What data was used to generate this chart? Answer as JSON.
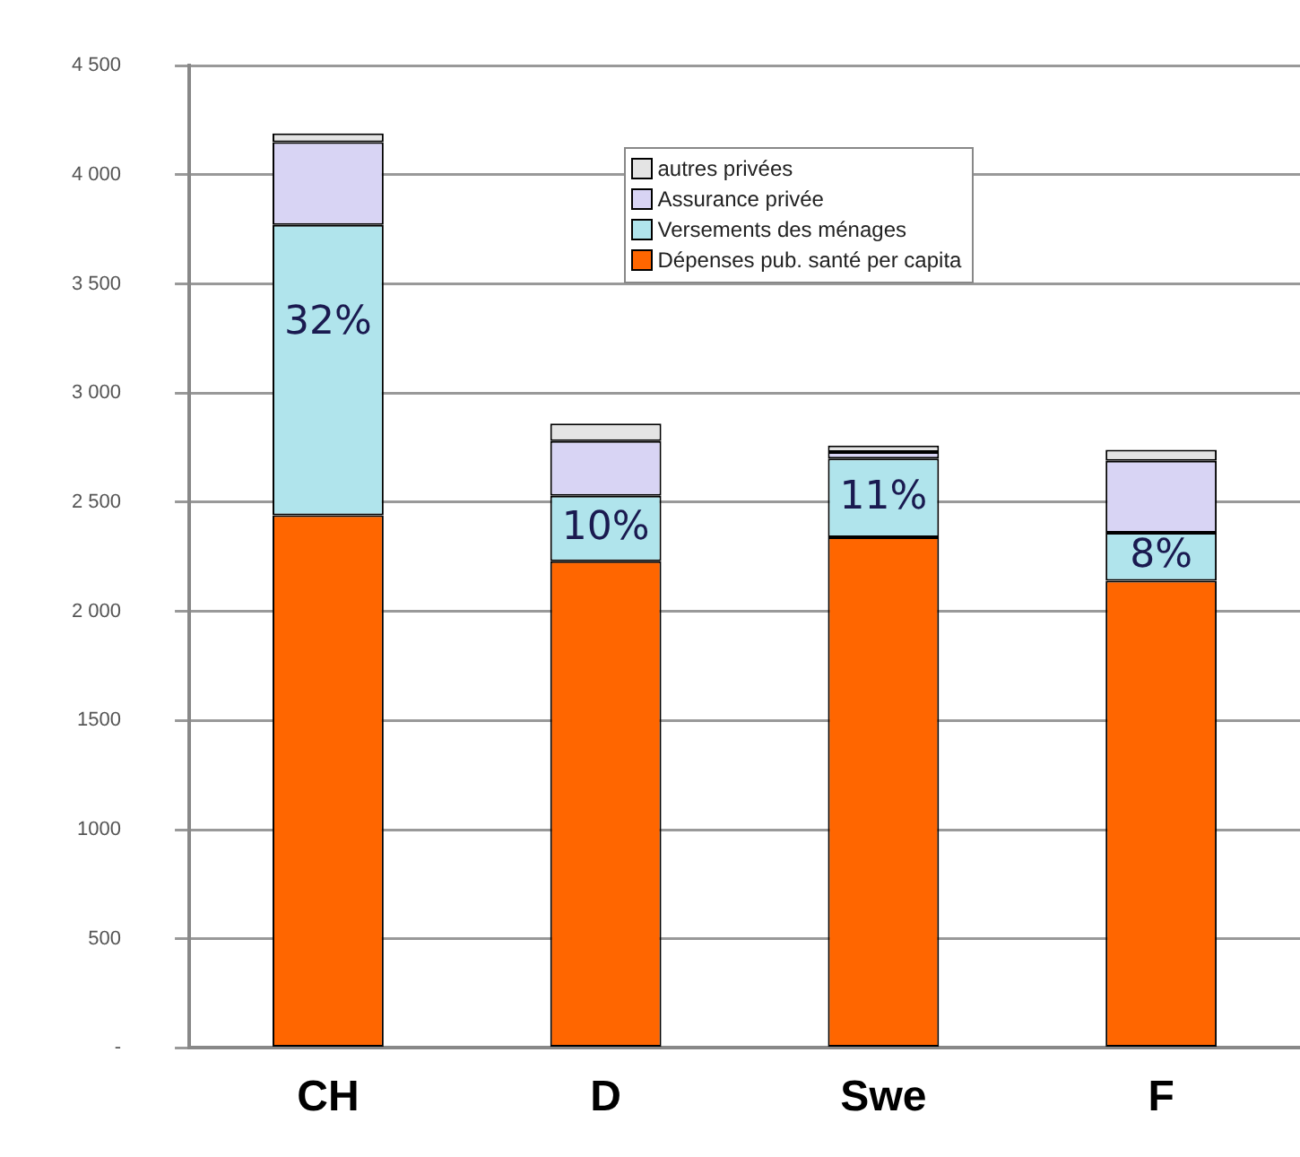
{
  "chart_data": {
    "type": "bar",
    "stacked": true,
    "categories": [
      "CH",
      "D",
      "Swe",
      "F"
    ],
    "series": [
      {
        "name": "Dépenses pub. santé per capita",
        "color": "#ff6600",
        "values": [
          2440,
          2230,
          2340,
          2140
        ]
      },
      {
        "name": "Versements des ménages",
        "color": "#b0e4ec",
        "values": [
          1330,
          300,
          360,
          220
        ]
      },
      {
        "name": "Assurance privée",
        "color": "#d8d4f4",
        "values": [
          380,
          250,
          30,
          330
        ]
      },
      {
        "name": "autres privées",
        "color": "#e4e4e4",
        "values": [
          40,
          80,
          30,
          50
        ]
      }
    ],
    "annotations": [
      "32%",
      "10%",
      "11%",
      "8%"
    ],
    "ylim": [
      0,
      4500
    ],
    "yticks": [
      {
        "value": 0,
        "label": "-"
      },
      500,
      1000,
      1500,
      {
        "value": 2000,
        "label": "2 000"
      },
      {
        "value": 2500,
        "label": "2 500"
      },
      {
        "value": 3000,
        "label": "3 000"
      },
      {
        "value": 3500,
        "label": "3 500"
      },
      {
        "value": 4000,
        "label": "4 000"
      },
      {
        "value": 4500,
        "label": "4 500"
      }
    ],
    "grid": "y",
    "legend": "top"
  }
}
